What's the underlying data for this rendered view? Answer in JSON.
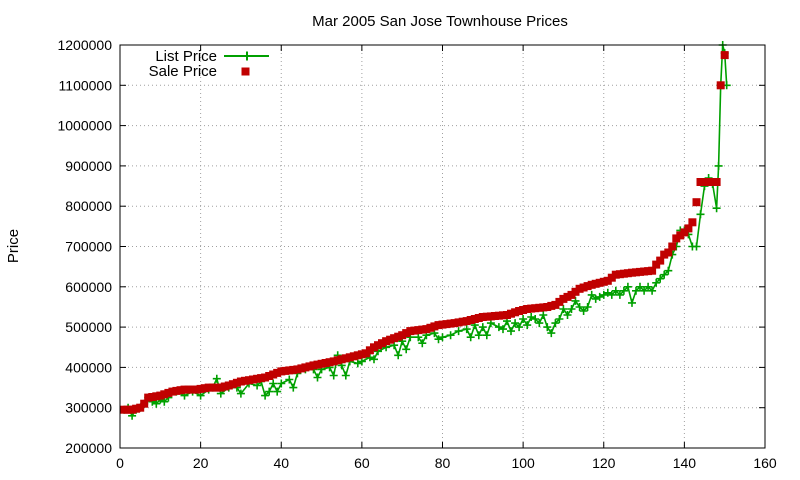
{
  "chart_data": {
    "type": "line",
    "title": "Mar 2005 San Jose Townhouse Prices",
    "xlabel": "",
    "ylabel": "Price",
    "xlim": [
      0,
      160
    ],
    "ylim": [
      200000,
      1200000
    ],
    "xticks": [
      0,
      20,
      40,
      60,
      80,
      100,
      120,
      140,
      160
    ],
    "yticks": [
      200000,
      300000,
      400000,
      500000,
      600000,
      700000,
      800000,
      900000,
      1000000,
      1100000,
      1200000
    ],
    "grid": true,
    "legend_position": "top-left",
    "series": [
      {
        "name": "List Price",
        "style": "lines+plus-markers",
        "color": "#00a000",
        "anchors": [
          [
            1,
            295000
          ],
          [
            2,
            300000
          ],
          [
            3,
            280000
          ],
          [
            4,
            295000
          ],
          [
            5,
            300000
          ],
          [
            6,
            310000
          ],
          [
            7,
            325000
          ],
          [
            8,
            315000
          ],
          [
            9,
            310000
          ],
          [
            10,
            320000
          ],
          [
            11,
            315000
          ],
          [
            12,
            325000
          ],
          [
            14,
            340000
          ],
          [
            16,
            330000
          ],
          [
            18,
            340000
          ],
          [
            20,
            330000
          ],
          [
            22,
            345000
          ],
          [
            23,
            350000
          ],
          [
            24,
            372000
          ],
          [
            25,
            335000
          ],
          [
            27,
            350000
          ],
          [
            29,
            350000
          ],
          [
            30,
            335000
          ],
          [
            32,
            360000
          ],
          [
            34,
            355000
          ],
          [
            35,
            365000
          ],
          [
            36,
            330000
          ],
          [
            37,
            340000
          ],
          [
            38,
            360000
          ],
          [
            39,
            340000
          ],
          [
            40,
            360000
          ],
          [
            42,
            370000
          ],
          [
            43,
            350000
          ],
          [
            44,
            385000
          ],
          [
            46,
            395000
          ],
          [
            48,
            395000
          ],
          [
            49,
            375000
          ],
          [
            50,
            395000
          ],
          [
            52,
            400000
          ],
          [
            53,
            380000
          ],
          [
            54,
            430000
          ],
          [
            55,
            405000
          ],
          [
            56,
            380000
          ],
          [
            57,
            415000
          ],
          [
            59,
            410000
          ],
          [
            60,
            415000
          ],
          [
            62,
            425000
          ],
          [
            63,
            420000
          ],
          [
            64,
            440000
          ],
          [
            66,
            450000
          ],
          [
            68,
            455000
          ],
          [
            69,
            430000
          ],
          [
            70,
            465000
          ],
          [
            71,
            445000
          ],
          [
            72,
            475000
          ],
          [
            74,
            475000
          ],
          [
            75,
            460000
          ],
          [
            76,
            480000
          ],
          [
            78,
            485000
          ],
          [
            79,
            470000
          ],
          [
            80,
            475000
          ],
          [
            82,
            480000
          ],
          [
            84,
            490000
          ],
          [
            86,
            495000
          ],
          [
            87,
            475000
          ],
          [
            88,
            505000
          ],
          [
            89,
            480000
          ],
          [
            90,
            500000
          ],
          [
            91,
            480000
          ],
          [
            92,
            510000
          ],
          [
            94,
            500000
          ],
          [
            95,
            495000
          ],
          [
            96,
            515000
          ],
          [
            97,
            490000
          ],
          [
            98,
            510000
          ],
          [
            99,
            500000
          ],
          [
            100,
            520000
          ],
          [
            101,
            505000
          ],
          [
            102,
            525000
          ],
          [
            103,
            520000
          ],
          [
            104,
            510000
          ],
          [
            105,
            530000
          ],
          [
            106,
            500000
          ],
          [
            107,
            485000
          ],
          [
            108,
            510000
          ],
          [
            109,
            520000
          ],
          [
            110,
            545000
          ],
          [
            111,
            530000
          ],
          [
            112,
            545000
          ],
          [
            113,
            565000
          ],
          [
            114,
            550000
          ],
          [
            115,
            540000
          ],
          [
            116,
            550000
          ],
          [
            117,
            580000
          ],
          [
            118,
            570000
          ],
          [
            119,
            575000
          ],
          [
            120,
            580000
          ],
          [
            121,
            585000
          ],
          [
            122,
            580000
          ],
          [
            123,
            590000
          ],
          [
            124,
            580000
          ],
          [
            125,
            590000
          ],
          [
            126,
            600000
          ],
          [
            127,
            560000
          ],
          [
            128,
            590000
          ],
          [
            129,
            600000
          ],
          [
            130,
            590000
          ],
          [
            131,
            600000
          ],
          [
            132,
            590000
          ],
          [
            133,
            610000
          ],
          [
            134,
            620000
          ],
          [
            135,
            630000
          ],
          [
            136,
            640000
          ],
          [
            137,
            680000
          ],
          [
            138,
            700000
          ],
          [
            139,
            740000
          ],
          [
            140,
            740000
          ],
          [
            141,
            730000
          ],
          [
            142,
            700000
          ],
          [
            143,
            700000
          ],
          [
            144,
            780000
          ],
          [
            145,
            850000
          ],
          [
            146,
            870000
          ],
          [
            147,
            855000
          ],
          [
            148,
            795000
          ],
          [
            148.5,
            900000
          ],
          [
            149,
            1100000
          ],
          [
            149.5,
            1200000
          ],
          [
            150,
            1180000
          ],
          [
            150.5,
            1100000
          ]
        ]
      },
      {
        "name": "Sale Price",
        "style": "square-markers",
        "color": "#c00000",
        "anchors": [
          [
            1,
            295000
          ],
          [
            3,
            295000
          ],
          [
            5,
            300000
          ],
          [
            6,
            310000
          ],
          [
            7,
            325000
          ],
          [
            10,
            330000
          ],
          [
            13,
            340000
          ],
          [
            16,
            345000
          ],
          [
            19,
            345000
          ],
          [
            22,
            350000
          ],
          [
            25,
            350000
          ],
          [
            27,
            355000
          ],
          [
            30,
            365000
          ],
          [
            33,
            370000
          ],
          [
            36,
            375000
          ],
          [
            40,
            390000
          ],
          [
            44,
            395000
          ],
          [
            48,
            405000
          ],
          [
            53,
            415000
          ],
          [
            57,
            425000
          ],
          [
            61,
            435000
          ],
          [
            63,
            450000
          ],
          [
            66,
            465000
          ],
          [
            70,
            480000
          ],
          [
            72,
            490000
          ],
          [
            76,
            495000
          ],
          [
            79,
            505000
          ],
          [
            83,
            510000
          ],
          [
            86,
            515000
          ],
          [
            90,
            525000
          ],
          [
            96,
            530000
          ],
          [
            99,
            540000
          ],
          [
            101,
            545000
          ],
          [
            106,
            550000
          ],
          [
            108,
            555000
          ],
          [
            110,
            570000
          ],
          [
            112,
            580000
          ],
          [
            114,
            595000
          ],
          [
            117,
            605000
          ],
          [
            121,
            615000
          ],
          [
            123,
            630000
          ],
          [
            127,
            635000
          ],
          [
            132,
            640000
          ],
          [
            133,
            655000
          ],
          [
            134,
            665000
          ],
          [
            135,
            680000
          ],
          [
            136,
            685000
          ],
          [
            137,
            700000
          ],
          [
            138,
            720000
          ],
          [
            140,
            735000
          ],
          [
            141,
            745000
          ],
          [
            142,
            760000
          ],
          [
            143,
            810000
          ],
          [
            144,
            860000
          ],
          [
            148,
            860000
          ],
          [
            149,
            1100000
          ],
          [
            150,
            1175000
          ]
        ]
      }
    ]
  }
}
